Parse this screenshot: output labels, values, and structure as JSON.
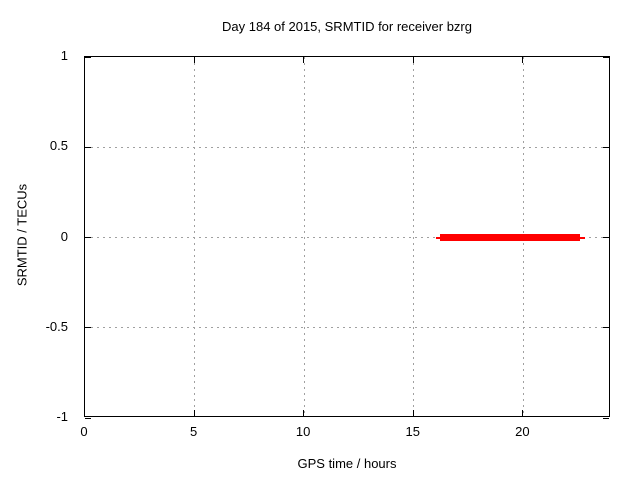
{
  "chart_data": {
    "type": "line",
    "title": "Day 184 of 2015, SRMTID for receiver bzrg",
    "xlabel": "GPS time / hours",
    "ylabel": "SRMTID / TECUs",
    "xlim": [
      0,
      24
    ],
    "ylim": [
      -1,
      1
    ],
    "xticks": [
      0,
      5,
      10,
      15,
      20
    ],
    "xtick_labels": [
      "0",
      "5",
      "10",
      "15",
      "20"
    ],
    "yticks": [
      1,
      0.5,
      0,
      -0.5,
      -1
    ],
    "ytick_labels": [
      "1",
      "0.5",
      "0",
      "-0.5",
      "-1"
    ],
    "grid": true,
    "legend": "none",
    "series": [
      {
        "name": "SRMTID",
        "color": "#ff0000",
        "style": "thick horizontal line segment at constant value",
        "y": 0,
        "x_start": 16.1,
        "x_end": 22.7,
        "segments": [
          {
            "x0": 16.0,
            "x1": 22.8,
            "y": 0,
            "thickness_px": 2
          },
          {
            "x0": 16.2,
            "x1": 22.6,
            "y": 0,
            "thickness_px": 7
          }
        ]
      }
    ],
    "colors": {
      "data": "#ff0000",
      "grid": "#a0a0a0",
      "axis": "#000000",
      "text": "#000000",
      "background": "#ffffff"
    }
  }
}
